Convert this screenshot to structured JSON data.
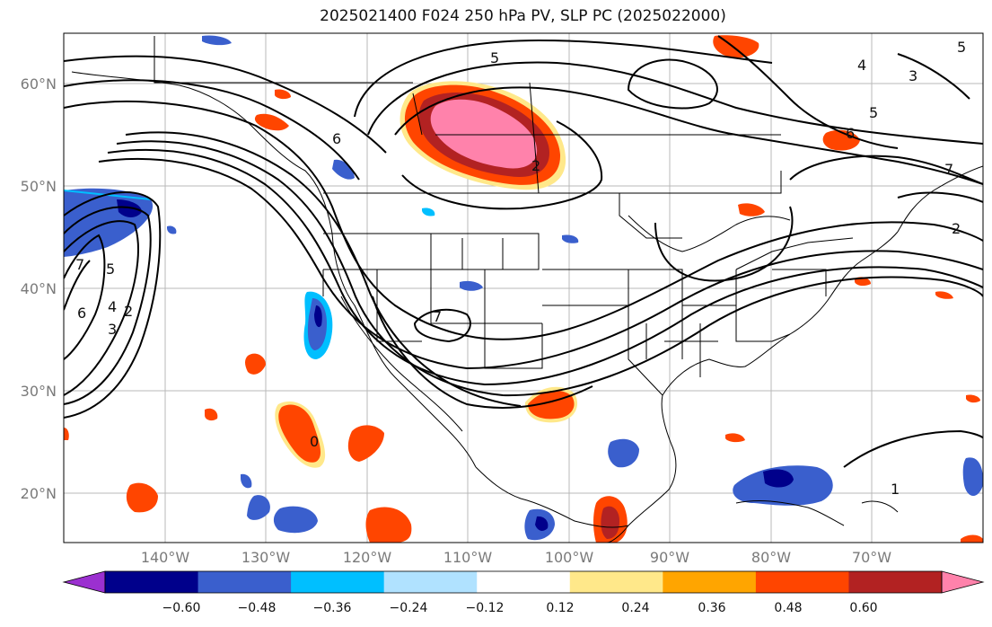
{
  "title": "2025021400 F024 250 hPa PV, SLP PC (2025022000)",
  "map": {
    "lat_labels": [
      "60°N",
      "50°N",
      "40°N",
      "30°N",
      "20°N"
    ],
    "lon_labels": [
      "140°W",
      "130°W",
      "120°W",
      "110°W",
      "100°W",
      "90°W",
      "80°W",
      "70°W"
    ],
    "contour_labels": [
      "5",
      "6",
      "5",
      "6",
      "4",
      "3",
      "2",
      "7",
      "7",
      "2",
      "5",
      "6",
      "5",
      "4",
      "3",
      "2",
      "7",
      "0",
      "1"
    ]
  },
  "colorbar": {
    "ticks": [
      "−0.60",
      "−0.48",
      "−0.36",
      "−0.24",
      "−0.12",
      "0.12",
      "0.24",
      "0.36",
      "0.48",
      "0.60"
    ],
    "colors": [
      "#9b30d0",
      "#00008b",
      "#3a5fcd",
      "#00bfff",
      "#b0e2ff",
      "#ffffff",
      "#ffe88a",
      "#ffa500",
      "#ff4500",
      "#b22222",
      "#ff82ab"
    ]
  }
}
